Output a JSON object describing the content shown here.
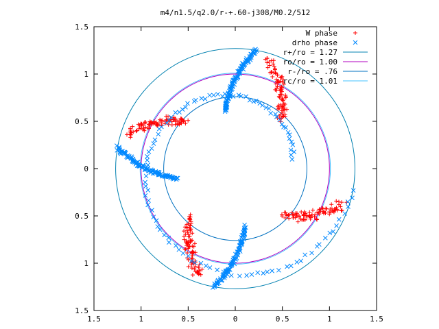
{
  "chart_data": {
    "type": "scatter",
    "title": "m4/n1.5/q2.0/r-+.60-j308/M0.2/512",
    "xlabel": "",
    "ylabel": "",
    "xlim": [
      -1.5,
      1.5
    ],
    "ylim": [
      -1.5,
      1.5
    ],
    "grid": false,
    "legend_position": "top-right",
    "x_ticks": [
      -1.5,
      -1,
      -0.5,
      0,
      0.5,
      1,
      1.5
    ],
    "x_tick_labels": [
      "1.5",
      "1",
      "0.5",
      "0",
      "0.5",
      "1",
      "1.5"
    ],
    "y_ticks": [
      1.5,
      1,
      0.5,
      0,
      -0.5,
      -1,
      -1.5
    ],
    "y_tick_labels": [
      "1.5",
      "1",
      "0.5",
      "0",
      "0.5",
      "1",
      "1.5"
    ],
    "series": [
      {
        "name": "W phase",
        "marker": "plus",
        "color": "#ff0000",
        "arms": [
          {
            "theta_start": 47,
            "theta_end": 72,
            "r_start": 0.72,
            "r_end": 1.2
          },
          {
            "theta_start": 137,
            "theta_end": 162,
            "r_start": 0.72,
            "r_end": 1.2
          },
          {
            "theta_start": 227,
            "theta_end": 252,
            "r_start": 0.72,
            "r_end": 1.2
          },
          {
            "theta_start": 317,
            "theta_end": 342,
            "r_start": 0.72,
            "r_end": 1.2
          }
        ]
      },
      {
        "name": "drho phase",
        "marker": "cross",
        "color": "#0088ff",
        "arms": [
          {
            "theta_start": 100,
            "theta_end": 80,
            "r_start": 0.62,
            "r_end": 1.27
          },
          {
            "theta_start": 190,
            "theta_end": 170,
            "r_start": 0.62,
            "r_end": 1.27
          },
          {
            "theta_start": 280,
            "theta_end": 260,
            "r_start": 0.62,
            "r_end": 1.27
          },
          {
            "theta_start": 10,
            "theta_end": 350,
            "r_start": 0.62,
            "r_end": 1.27
          }
        ]
      }
    ],
    "circles": [
      {
        "name": "r+/ro = 1.27",
        "r": 1.27,
        "color": "#0080b0"
      },
      {
        "name": "ro/ro = 1.00",
        "r": 1.0,
        "color": "#b000c0"
      },
      {
        "name": "r-/ro = .76",
        "r": 0.76,
        "color": "#0070c0"
      },
      {
        "name": "rc/ro = 1.01",
        "r": 1.01,
        "color": "#40c0ff"
      }
    ]
  }
}
